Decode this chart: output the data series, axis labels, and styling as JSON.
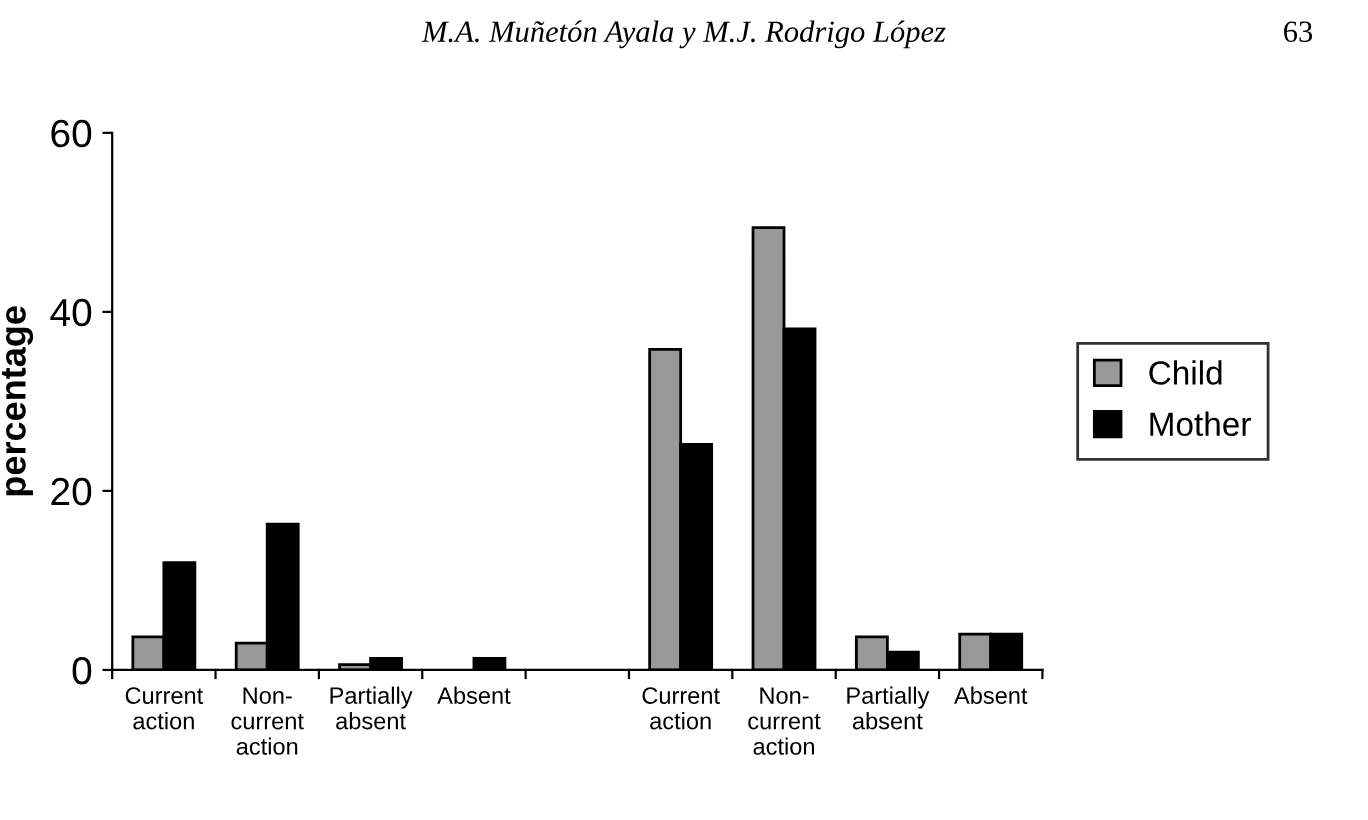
{
  "chart_data": {
    "type": "bar",
    "ylabel": "percentage",
    "annotations": [
      "M.A. Muñetón Ayala y M.J. Rodrigo López",
      "63"
    ],
    "categories": [
      "Current\naction",
      "Non-\ncurrent\naction",
      "Partially\nabsent",
      "Absent",
      null,
      "Current\naction",
      "Non-\ncurrent\naction",
      "Partially\nabsent",
      "Absent"
    ],
    "series": [
      {
        "name": "Child",
        "color": "#999999",
        "values": [
          3.7,
          3.0,
          0.6,
          0,
          null,
          35.8,
          49.4,
          3.7,
          4.0
        ]
      },
      {
        "name": "Mother",
        "color": "#000000",
        "values": [
          12.0,
          16.3,
          1.3,
          1.3,
          null,
          25.2,
          38.1,
          2.0,
          4.0
        ]
      }
    ],
    "ylim": [
      0,
      60
    ],
    "yticks": [
      0,
      20,
      40,
      60
    ],
    "grid": false,
    "legend": "right"
  }
}
